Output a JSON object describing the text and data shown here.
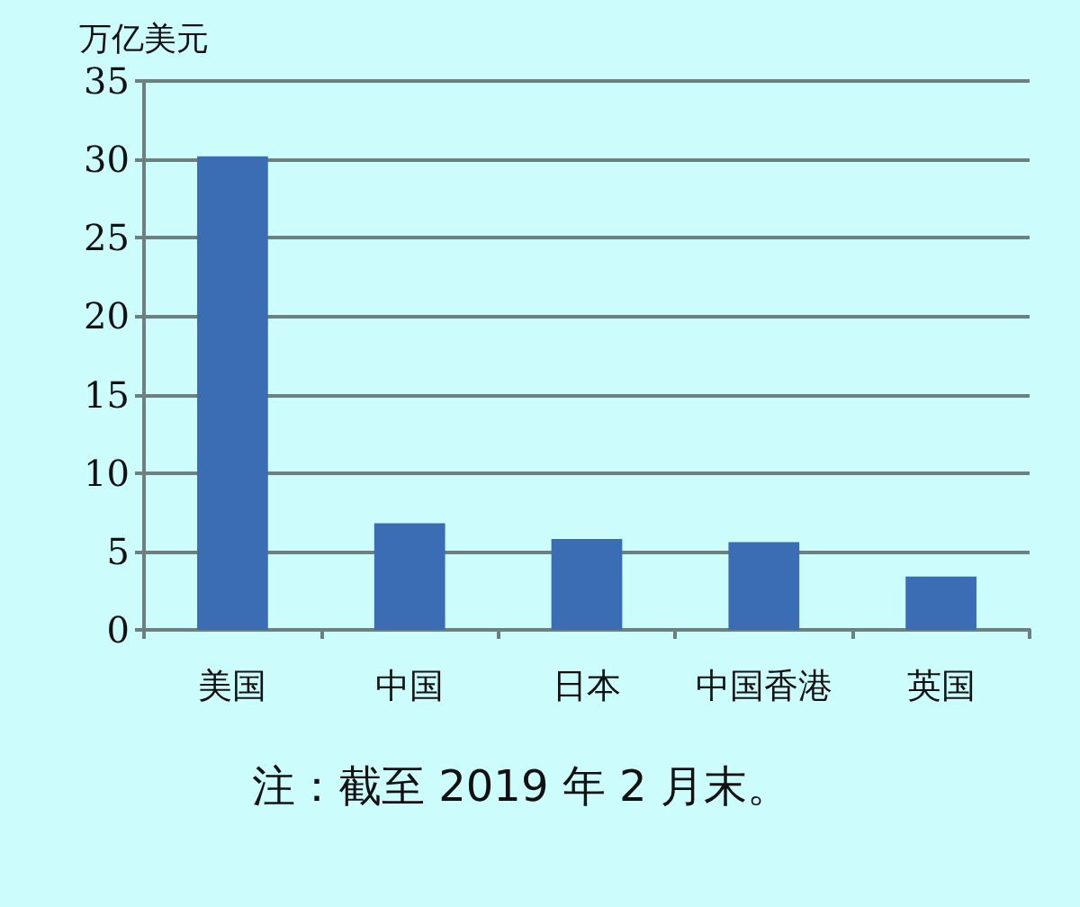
{
  "chart_data": {
    "type": "bar",
    "ylabel": "万亿美元",
    "categories": [
      "美国",
      "中国",
      "日本",
      "中国香港",
      "英国"
    ],
    "values": [
      30.2,
      6.8,
      5.8,
      5.6,
      3.4
    ],
    "color": "#3b6db5",
    "ylim": [
      0,
      35
    ],
    "yticks": [
      0,
      5,
      10,
      15,
      20,
      25,
      30,
      35
    ],
    "grid": "y",
    "annotations": [
      "注：截至 2019 年 2 月末。"
    ]
  }
}
